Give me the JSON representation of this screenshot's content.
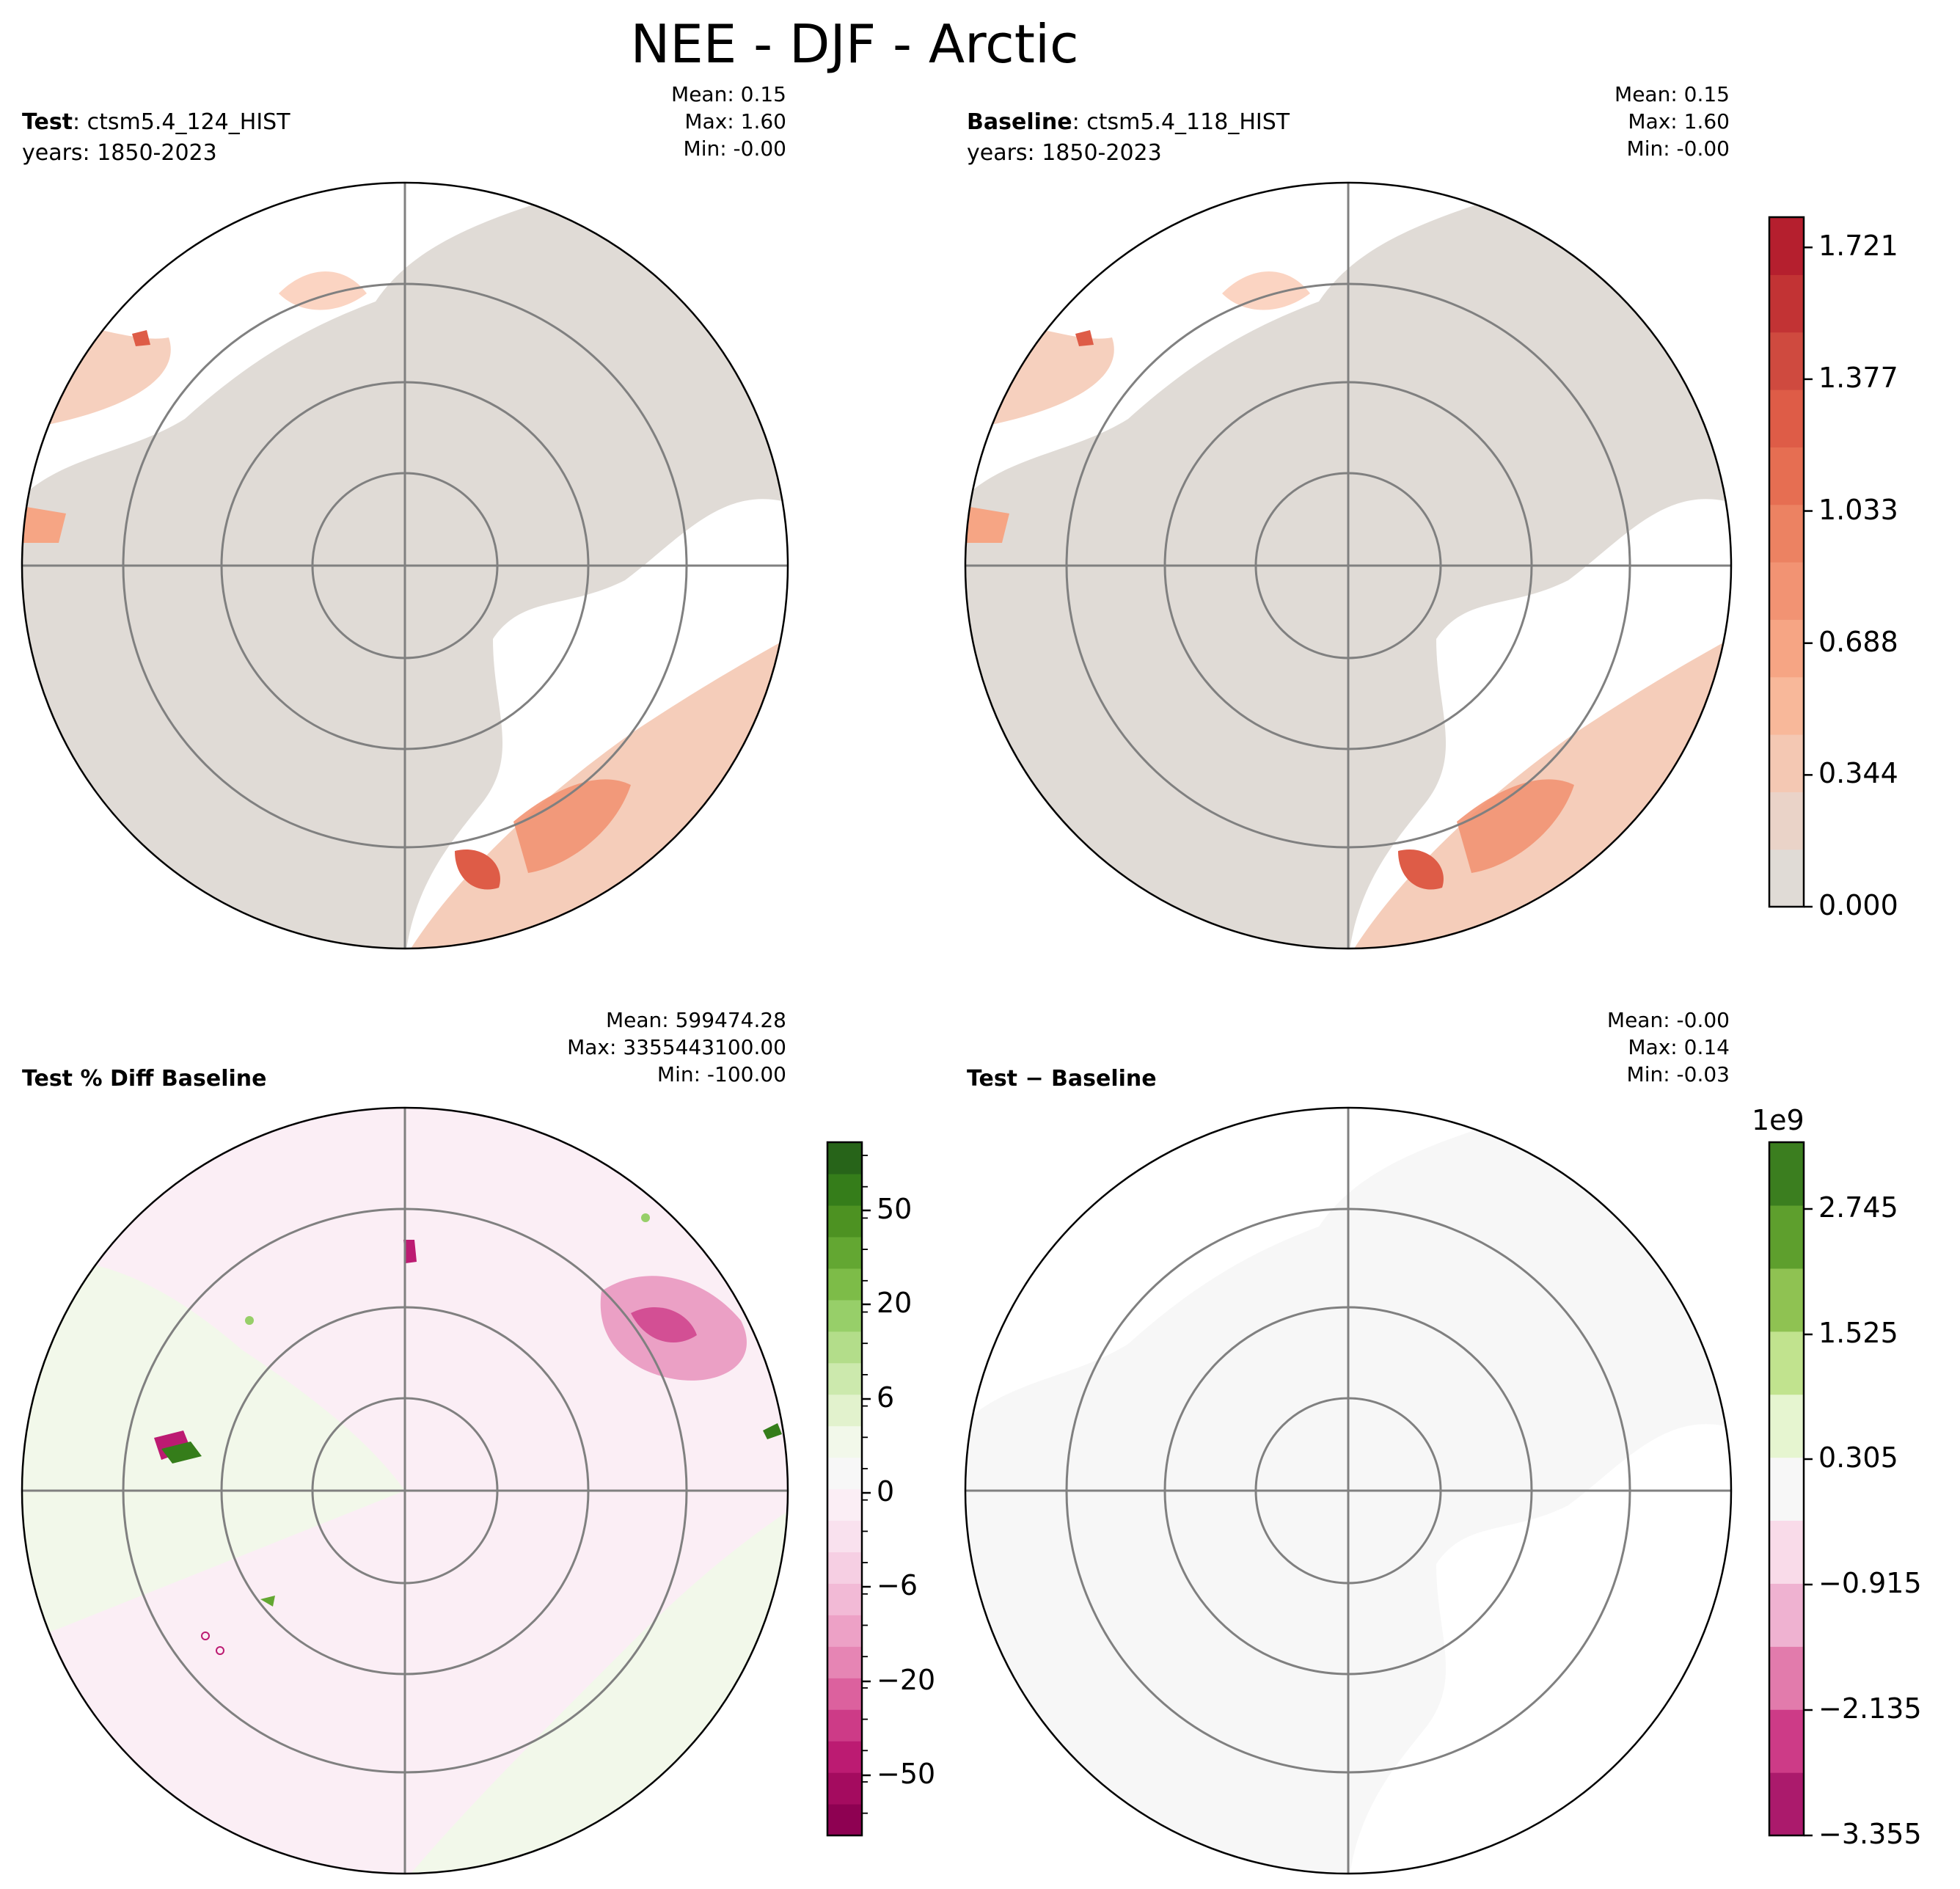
{
  "title": "NEE - DJF - Arctic",
  "panels": {
    "test": {
      "label_bold": "Test",
      "label_rest": ": ctsm5.4_124_HIST",
      "years": "years: 1850-2023",
      "mean": "Mean:  0.15",
      "max": "Max:  1.60",
      "min": "Min: -0.00"
    },
    "baseline": {
      "label_bold": "Baseline",
      "label_rest": ": ctsm5.4_118_HIST",
      "years": "years: 1850-2023",
      "mean": "Mean:  0.15",
      "max": "Max:  1.60",
      "min": "Min: -0.00"
    },
    "pctdiff": {
      "label": "Test % Diff Baseline",
      "mean": "Mean: 599474.28",
      "max": "Max: 3355443100.00",
      "min": "Min: -100.00"
    },
    "diff": {
      "label": "Test − Baseline",
      "mean": "Mean: -0.00",
      "max": "Max:  0.14",
      "min": "Min: -0.03"
    }
  },
  "colorbars": {
    "top": {
      "ticks": [
        "0.000",
        "0.344",
        "0.688",
        "1.033",
        "1.377",
        "1.721"
      ],
      "colors": [
        "#e0dbd6",
        "#ead3c8",
        "#f4c8b3",
        "#f8b89a",
        "#f6a584",
        "#f29373",
        "#ec8262",
        "#e66e52",
        "#de5c47",
        "#cf4a3f",
        "#c23334",
        "#b51f2e"
      ]
    },
    "pct": {
      "ticks": [
        "−50",
        "−20",
        "−6",
        "0",
        "6",
        "20",
        "50"
      ],
      "colors": [
        "#8e0152",
        "#a40b5f",
        "#bc1b72",
        "#cd3b87",
        "#dc619e",
        "#e685b4",
        "#eda1c6",
        "#f2bad6",
        "#f6cfe3",
        "#f9e1ee",
        "#fbeef5",
        "#f7f7f7",
        "#f2f8ea",
        "#e2f2cd",
        "#cce9ad",
        "#b3dd8a",
        "#97cf69",
        "#7dbc48",
        "#63a732",
        "#4d9222",
        "#357d1a",
        "#276419"
      ]
    },
    "diff": {
      "multiplier": "1e9",
      "ticks": [
        "−3.355",
        "−2.135",
        "−0.915",
        "0.305",
        "1.525",
        "2.745"
      ],
      "colors": [
        "#ab1a6c",
        "#cd3b87",
        "#e27bac",
        "#efb2d1",
        "#f9dbe9",
        "#f7f7f7",
        "#e6f5d0",
        "#c1e38e",
        "#8fc252",
        "#5e9f2d",
        "#3b7e1f"
      ]
    }
  },
  "chart_data": [
    {
      "type": "heatmap",
      "name": "Test",
      "projection": "north polar stereographic",
      "variable": "NEE",
      "season": "DJF",
      "region": "Arctic",
      "mean": 0.15,
      "max": 1.6,
      "min": -0.0,
      "colorbar_range": [
        0.0,
        1.8
      ]
    },
    {
      "type": "heatmap",
      "name": "Baseline",
      "projection": "north polar stereographic",
      "mean": 0.15,
      "max": 1.6,
      "min": -0.0,
      "colorbar_range": [
        0.0,
        1.8
      ]
    },
    {
      "type": "heatmap",
      "name": "Test % Diff Baseline",
      "mean": 599474.28,
      "max": 3355443100.0,
      "min": -100.0,
      "colorbar_ticks": [
        -50,
        -20,
        -6,
        0,
        6,
        20,
        50
      ]
    },
    {
      "type": "heatmap",
      "name": "Test - Baseline",
      "mean": -0.0,
      "max": 0.14,
      "min": -0.03,
      "colorbar_multiplier": 1000000000,
      "colorbar_ticks": [
        -3.355,
        -2.135,
        -0.915,
        0.305,
        1.525,
        2.745
      ]
    }
  ]
}
